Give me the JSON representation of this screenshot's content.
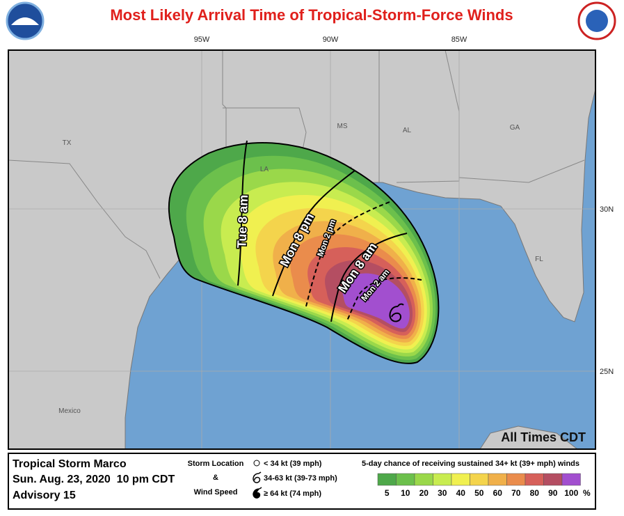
{
  "header": {
    "title": "Most Likely Arrival Time of Tropical-Storm-Force Winds"
  },
  "map": {
    "longitude_labels": [
      "95W",
      "90W",
      "85W"
    ],
    "latitude_labels": [
      "30N",
      "25N"
    ],
    "place_labels": [
      "TX",
      "LA",
      "MS",
      "AL",
      "GA",
      "FL",
      "Mexico"
    ],
    "time_labels": [
      "Tue 8 am",
      "Mon 8 pm",
      "Mon 2 pm",
      "Mon 8 am",
      "Mon 2 am"
    ],
    "note": "All Times CDT"
  },
  "footer": {
    "storm": "Tropical Storm Marco",
    "datetime": "Sun. Aug. 23, 2020  10 pm CDT",
    "advisory": "Advisory 15",
    "symbol_legend": {
      "title_lines": [
        "Storm Location",
        "&",
        "Wind Speed"
      ],
      "items": [
        "< 34 kt (39 mph)",
        "34-63 kt (39-73 mph)",
        "≥ 64 kt (74 mph)"
      ]
    },
    "probability": {
      "title": "5-day chance of receiving sustained 34+ kt (39+ mph) winds",
      "labels": [
        "5",
        "10",
        "20",
        "30",
        "40",
        "50",
        "60",
        "70",
        "80",
        "90",
        "100"
      ],
      "unit": "%",
      "colors": [
        "#4ea84a",
        "#6cc04c",
        "#9ad84a",
        "#c8ec50",
        "#f0f050",
        "#f4d44c",
        "#f0b04a",
        "#ea8c4c",
        "#d6605a",
        "#b44e62",
        "#a24fcf"
      ]
    }
  }
}
